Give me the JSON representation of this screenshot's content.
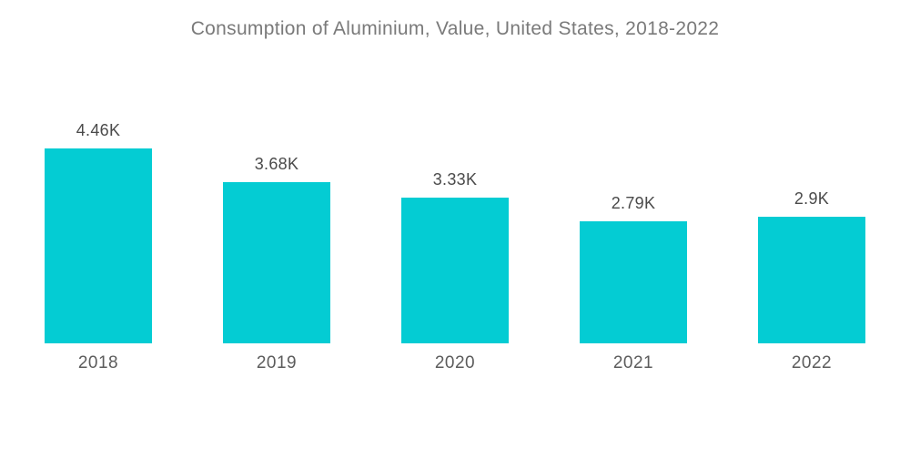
{
  "title": "Consumption of Aluminium, Value, United States, 2018-2022",
  "colors": {
    "background": "#ffffff",
    "bar": "#04ccd3",
    "title_text": "#7a7a7a",
    "value_text": "#4a4a4a",
    "year_text": "#5c5c5c"
  },
  "chart_data": {
    "type": "bar",
    "title": "Consumption of Aluminium, Value, United States, 2018-2022",
    "categories": [
      "2018",
      "2019",
      "2020",
      "2021",
      "2022"
    ],
    "values": [
      4.46,
      3.68,
      3.33,
      2.79,
      2.9
    ],
    "value_labels": [
      "4.46K",
      "3.68K",
      "3.33K",
      "2.79K",
      "2.9K"
    ],
    "xlabel": "",
    "ylabel": "",
    "ylim": [
      0,
      4.6
    ],
    "unit": "K",
    "grid": false,
    "legend": "none",
    "axes_visible": false
  }
}
